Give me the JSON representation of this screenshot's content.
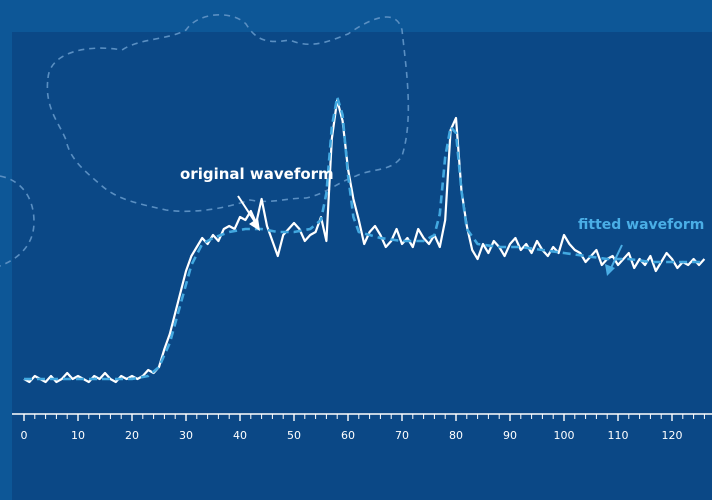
{
  "chart_data": {
    "type": "line",
    "xlim": [
      0,
      126
    ],
    "x_ticks": [
      0,
      10,
      20,
      30,
      40,
      50,
      60,
      70,
      80,
      90,
      100,
      110,
      120
    ],
    "ylim": [
      0,
      1
    ],
    "grid": false,
    "legend": "annotations",
    "series": [
      {
        "name": "original waveform",
        "style": "solid",
        "color": "#ffffff",
        "x": [
          0,
          1,
          2,
          3,
          4,
          5,
          6,
          7,
          8,
          9,
          10,
          11,
          12,
          13,
          14,
          15,
          16,
          17,
          18,
          19,
          20,
          21,
          22,
          23,
          24,
          25,
          26,
          27,
          28,
          29,
          30,
          31,
          32,
          33,
          34,
          35,
          36,
          37,
          38,
          39,
          40,
          41,
          42,
          43,
          44,
          45,
          46,
          47,
          48,
          49,
          50,
          51,
          52,
          53,
          54,
          55,
          56,
          57,
          58,
          59,
          60,
          61,
          62,
          63,
          64,
          65,
          66,
          67,
          68,
          69,
          70,
          71,
          72,
          73,
          74,
          75,
          76,
          77,
          78,
          79,
          80,
          81,
          82,
          83,
          84,
          85,
          86,
          87,
          88,
          89,
          90,
          91,
          92,
          93,
          94,
          95,
          96,
          97,
          98,
          99,
          100,
          101,
          102,
          103,
          104,
          105,
          106,
          107,
          108,
          109,
          110,
          111,
          112,
          113,
          114,
          115,
          116,
          117,
          118,
          119,
          120,
          121,
          122,
          123,
          124,
          125,
          126
        ],
        "values": [
          0.02,
          0.01,
          0.03,
          0.02,
          0.01,
          0.03,
          0.01,
          0.02,
          0.04,
          0.02,
          0.03,
          0.02,
          0.01,
          0.03,
          0.02,
          0.04,
          0.02,
          0.01,
          0.03,
          0.02,
          0.03,
          0.02,
          0.03,
          0.05,
          0.04,
          0.06,
          0.12,
          0.17,
          0.24,
          0.31,
          0.38,
          0.43,
          0.46,
          0.49,
          0.47,
          0.5,
          0.48,
          0.52,
          0.53,
          0.52,
          0.56,
          0.55,
          0.58,
          0.54,
          0.62,
          0.53,
          0.48,
          0.43,
          0.5,
          0.52,
          0.54,
          0.52,
          0.48,
          0.5,
          0.51,
          0.56,
          0.48,
          0.82,
          0.95,
          0.88,
          0.72,
          0.62,
          0.55,
          0.47,
          0.51,
          0.53,
          0.5,
          0.46,
          0.48,
          0.52,
          0.47,
          0.49,
          0.46,
          0.52,
          0.49,
          0.47,
          0.5,
          0.46,
          0.55,
          0.85,
          0.89,
          0.65,
          0.53,
          0.45,
          0.42,
          0.47,
          0.44,
          0.48,
          0.46,
          0.43,
          0.47,
          0.49,
          0.45,
          0.47,
          0.44,
          0.48,
          0.45,
          0.43,
          0.46,
          0.44,
          0.5,
          0.47,
          0.45,
          0.44,
          0.41,
          0.43,
          0.45,
          0.4,
          0.42,
          0.43,
          0.4,
          0.42,
          0.44,
          0.39,
          0.42,
          0.4,
          0.43,
          0.38,
          0.41,
          0.44,
          0.42,
          0.39,
          0.41,
          0.4,
          0.42,
          0.4,
          0.42
        ]
      },
      {
        "name": "fitted waveform",
        "style": "dashed",
        "color": "#42a8e0",
        "x": [
          0,
          5,
          10,
          15,
          20,
          23,
          25,
          27,
          29,
          31,
          33,
          35,
          38,
          41,
          44,
          47,
          50,
          53,
          55,
          56,
          57,
          58,
          59,
          60,
          61,
          62,
          64,
          66,
          70,
          74,
          76,
          77,
          78,
          79,
          80,
          81,
          82,
          84,
          88,
          92,
          96,
          100,
          104,
          108,
          112,
          116,
          120,
          124,
          126
        ],
        "values": [
          0.02,
          0.02,
          0.02,
          0.02,
          0.02,
          0.03,
          0.06,
          0.14,
          0.27,
          0.4,
          0.47,
          0.49,
          0.51,
          0.52,
          0.52,
          0.51,
          0.51,
          0.52,
          0.55,
          0.64,
          0.86,
          0.96,
          0.9,
          0.7,
          0.56,
          0.51,
          0.5,
          0.49,
          0.48,
          0.48,
          0.5,
          0.57,
          0.76,
          0.86,
          0.84,
          0.65,
          0.52,
          0.47,
          0.46,
          0.46,
          0.45,
          0.44,
          0.43,
          0.42,
          0.42,
          0.41,
          0.41,
          0.41,
          0.41
        ]
      }
    ],
    "annotations": [
      {
        "text": "original waveform",
        "target_series": "original waveform",
        "target_x": 44
      },
      {
        "text": "fitted waveform",
        "target_series": "fitted waveform",
        "target_x": 108
      }
    ],
    "colors": {
      "outer_background": "#0d5797",
      "plot_background": "#0b4886",
      "axis": "#ffffff",
      "annotation_original": "#ffffff",
      "annotation_fitted": "#4aaee6",
      "decorative_outline": "#5a8fc2"
    }
  }
}
